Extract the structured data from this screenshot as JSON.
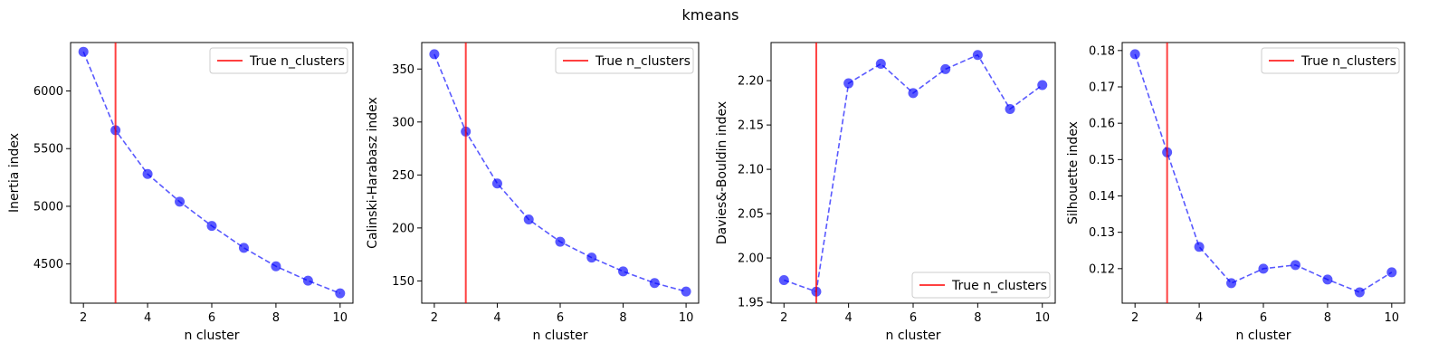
{
  "figure": {
    "suptitle": "kmeans"
  },
  "chart_data": [
    {
      "type": "line",
      "title": "",
      "xlabel": "n cluster",
      "ylabel": "Inertia index",
      "x": [
        2,
        3,
        4,
        5,
        6,
        7,
        8,
        9,
        10
      ],
      "xlim": [
        1.6,
        10.4
      ],
      "xticks": [
        2,
        4,
        6,
        8,
        10
      ],
      "ylim": [
        4160,
        6420
      ],
      "yticks": [
        4500,
        5000,
        5500,
        6000
      ],
      "series": [
        {
          "values": [
            6340,
            5660,
            5280,
            5040,
            4830,
            4640,
            4480,
            4355,
            4245
          ],
          "color": "#0000ff",
          "style": "dashed",
          "marker": "circle"
        }
      ],
      "vline": {
        "x": 3,
        "color": "#ff0000",
        "label": "True n_clusters"
      },
      "legend": {
        "position": "top-right",
        "entries": [
          "True n_clusters"
        ]
      },
      "grid": false
    },
    {
      "type": "line",
      "title": "",
      "xlabel": "n cluster",
      "ylabel": "Calinski-Harabasz index",
      "x": [
        2,
        3,
        4,
        5,
        6,
        7,
        8,
        9,
        10
      ],
      "xlim": [
        1.6,
        10.4
      ],
      "xticks": [
        2,
        4,
        6,
        8,
        10
      ],
      "ylim": [
        129,
        375
      ],
      "yticks": [
        150,
        200,
        250,
        300,
        350
      ],
      "series": [
        {
          "values": [
            364,
            291,
            242,
            208,
            187,
            172,
            159,
            148,
            140
          ],
          "color": "#0000ff",
          "style": "dashed",
          "marker": "circle"
        }
      ],
      "vline": {
        "x": 3,
        "color": "#ff0000",
        "label": "True n_clusters"
      },
      "legend": {
        "position": "top-right",
        "entries": [
          "True n_clusters"
        ]
      },
      "grid": false
    },
    {
      "type": "line",
      "title": "",
      "xlabel": "n cluster",
      "ylabel": "Davies&-Bouldin index",
      "x": [
        2,
        3,
        4,
        5,
        6,
        7,
        8,
        9,
        10
      ],
      "xlim": [
        1.6,
        10.4
      ],
      "xticks": [
        2,
        4,
        6,
        8,
        10
      ],
      "ylim": [
        1.949,
        2.243
      ],
      "yticks": [
        1.95,
        2.0,
        2.05,
        2.1,
        2.15,
        2.2
      ],
      "ytick_labels": [
        "1.95",
        "2.00",
        "2.05",
        "2.10",
        "2.15",
        "2.20"
      ],
      "series": [
        {
          "values": [
            1.975,
            1.962,
            2.197,
            2.219,
            2.186,
            2.213,
            2.229,
            2.168,
            2.195
          ],
          "color": "#0000ff",
          "style": "dashed",
          "marker": "circle"
        }
      ],
      "vline": {
        "x": 3,
        "color": "#ff0000",
        "label": "True n_clusters"
      },
      "legend": {
        "position": "bottom-right",
        "entries": [
          "True n_clusters"
        ]
      },
      "grid": false
    },
    {
      "type": "line",
      "title": "",
      "xlabel": "n cluster",
      "ylabel": "Silhouette index",
      "x": [
        2,
        3,
        4,
        5,
        6,
        7,
        8,
        9,
        10
      ],
      "xlim": [
        1.6,
        10.4
      ],
      "xticks": [
        2,
        4,
        6,
        8,
        10
      ],
      "ylim": [
        0.1105,
        0.1822
      ],
      "yticks": [
        0.12,
        0.13,
        0.14,
        0.15,
        0.16,
        0.17,
        0.18
      ],
      "ytick_labels": [
        "0.12",
        "0.13",
        "0.14",
        "0.15",
        "0.16",
        "0.17",
        "0.18"
      ],
      "series": [
        {
          "values": [
            0.179,
            0.152,
            0.126,
            0.116,
            0.12,
            0.121,
            0.117,
            0.1135,
            0.119
          ],
          "color": "#0000ff",
          "style": "dashed",
          "marker": "circle"
        }
      ],
      "vline": {
        "x": 3,
        "color": "#ff0000",
        "label": "True n_clusters"
      },
      "legend": {
        "position": "top-right",
        "entries": [
          "True n_clusters"
        ]
      },
      "grid": false
    }
  ]
}
